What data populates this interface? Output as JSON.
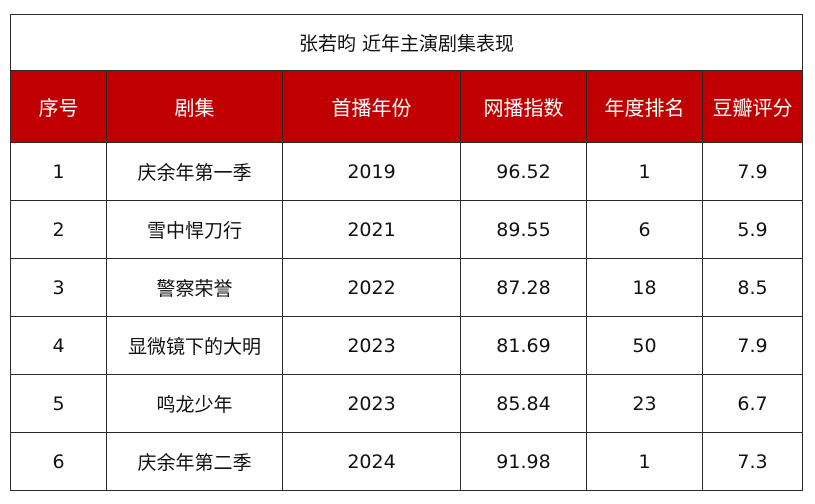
{
  "title": "张若昀 近年主演剧集表现",
  "columns": [
    "序号",
    "剧集",
    "首播年份",
    "网播指数",
    "年度排名",
    "豆瓣评分"
  ],
  "rows": [
    [
      "1",
      "庆余年第一季",
      "2019",
      "96.52",
      "1",
      "7.9"
    ],
    [
      "2",
      "雪中悍刀行",
      "2021",
      "89.55",
      "6",
      "5.9"
    ],
    [
      "3",
      "警察荣誉",
      "2022",
      "87.28",
      "18",
      "8.5"
    ],
    [
      "4",
      "显微镜下的大明",
      "2023",
      "81.69",
      "50",
      "7.9"
    ],
    [
      "5",
      "鸣龙少年",
      "2023",
      "85.84",
      "23",
      "6.7"
    ],
    [
      "6",
      "庆余年第二季",
      "2024",
      "91.98",
      "1",
      "7.3"
    ]
  ],
  "colors": {
    "header_bg": "#c00000",
    "header_text": "#ffffff",
    "border": "#2b2b2b"
  }
}
